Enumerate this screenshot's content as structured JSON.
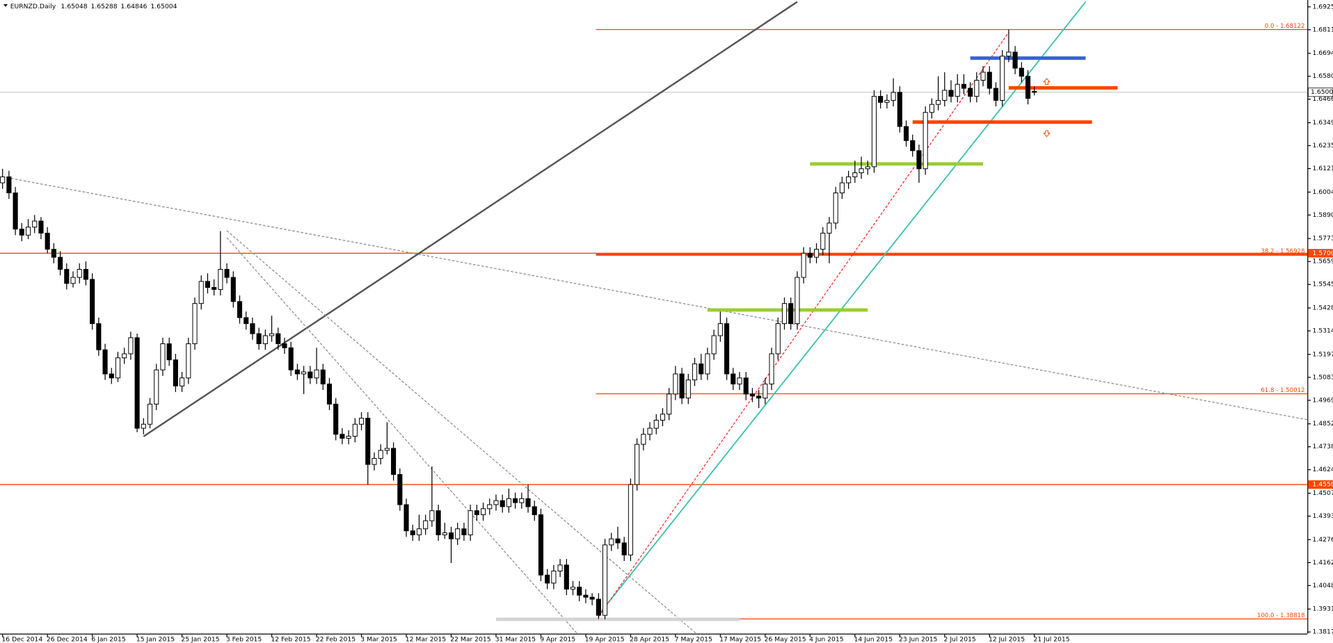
{
  "chart_data": {
    "type": "candlestick",
    "title": "EURNZD.Daily",
    "ylim": [
      1.3809,
      1.6959
    ],
    "yticks": [
      {
        "value": 1.6925,
        "label": "1.69250"
      },
      {
        "value": 1.6811,
        "label": "1.68110"
      },
      {
        "value": 1.6694,
        "label": "1.66940"
      },
      {
        "value": 1.658,
        "label": "1.65800"
      },
      {
        "value": 1.6466,
        "label": "1.64660"
      },
      {
        "value": 1.6349,
        "label": "1.63490"
      },
      {
        "value": 1.6235,
        "label": "1.62350"
      },
      {
        "value": 1.6121,
        "label": "1.61210"
      },
      {
        "value": 1.6004,
        "label": "1.60040"
      },
      {
        "value": 1.589,
        "label": "1.58900"
      },
      {
        "value": 1.5773,
        "label": "1.57730"
      },
      {
        "value": 1.5659,
        "label": "1.56590"
      },
      {
        "value": 1.5545,
        "label": "1.55450"
      },
      {
        "value": 1.5428,
        "label": "1.54280"
      },
      {
        "value": 1.5314,
        "label": "1.53140"
      },
      {
        "value": 1.5197,
        "label": "1.51970"
      },
      {
        "value": 1.5083,
        "label": "1.50830"
      },
      {
        "value": 1.4969,
        "label": "1.49690"
      },
      {
        "value": 1.4852,
        "label": "1.48520"
      },
      {
        "value": 1.4738,
        "label": "1.47380"
      },
      {
        "value": 1.4624,
        "label": "1.46240"
      },
      {
        "value": 1.4507,
        "label": "1.45070"
      },
      {
        "value": 1.4393,
        "label": "1.43930"
      },
      {
        "value": 1.4276,
        "label": "1.42760"
      },
      {
        "value": 1.4162,
        "label": "1.41620"
      },
      {
        "value": 1.4048,
        "label": "1.40480"
      },
      {
        "value": 1.3931,
        "label": "1.39310"
      },
      {
        "value": 1.3817,
        "label": "1.38170"
      }
    ],
    "x_labels": [
      "16 Dec 2014",
      "26 Dec 2014",
      "6 Jan 2015",
      "15 Jan 2015",
      "25 Jan 2015",
      "3 Feb 2015",
      "12 Feb 2015",
      "22 Feb 2015",
      "3 Mar 2015",
      "12 Mar 2015",
      "22 Mar 2015",
      "31 Mar 2015",
      "9 Apr 2015",
      "19 Apr 2015",
      "28 Apr 2015",
      "7 May 2015",
      "17 May 2015",
      "26 May 2015",
      "4 Jun 2015",
      "14 Jun 2015",
      "23 Jun 2015",
      "2 Jul 2015",
      "12 Jul 2015",
      "21 Jul 2015"
    ],
    "ohlc": [
      [
        1.605,
        1.612,
        1.602,
        1.608
      ],
      [
        1.608,
        1.611,
        1.597,
        1.6
      ],
      [
        1.6,
        1.603,
        1.579,
        1.582
      ],
      [
        1.582,
        1.585,
        1.576,
        1.579
      ],
      [
        1.579,
        1.587,
        1.577,
        1.583
      ],
      [
        1.583,
        1.589,
        1.58,
        1.586
      ],
      [
        1.586,
        1.588,
        1.577,
        1.58
      ],
      [
        1.58,
        1.583,
        1.57,
        1.572
      ],
      [
        1.572,
        1.575,
        1.565,
        1.568
      ],
      [
        1.568,
        1.571,
        1.559,
        1.562
      ],
      [
        1.562,
        1.565,
        1.552,
        1.555
      ],
      [
        1.555,
        1.561,
        1.553,
        1.558
      ],
      [
        1.558,
        1.565,
        1.555,
        1.562
      ],
      [
        1.562,
        1.566,
        1.554,
        1.557
      ],
      [
        1.557,
        1.56,
        1.532,
        1.535
      ],
      [
        1.535,
        1.538,
        1.519,
        1.522
      ],
      [
        1.522,
        1.525,
        1.507,
        1.51
      ],
      [
        1.51,
        1.513,
        1.505,
        1.508
      ],
      [
        1.508,
        1.521,
        1.506,
        1.518
      ],
      [
        1.518,
        1.523,
        1.515,
        1.52
      ],
      [
        1.52,
        1.531,
        1.517,
        1.528
      ],
      [
        1.528,
        1.53,
        1.481,
        1.483
      ],
      [
        1.483,
        1.488,
        1.48,
        1.485
      ],
      [
        1.485,
        1.498,
        1.483,
        1.495
      ],
      [
        1.495,
        1.515,
        1.492,
        1.512
      ],
      [
        1.512,
        1.528,
        1.509,
        1.525
      ],
      [
        1.525,
        1.528,
        1.514,
        1.517
      ],
      [
        1.517,
        1.52,
        1.501,
        1.504
      ],
      [
        1.504,
        1.511,
        1.501,
        1.508
      ],
      [
        1.508,
        1.528,
        1.505,
        1.525
      ],
      [
        1.525,
        1.548,
        1.522,
        1.545
      ],
      [
        1.545,
        1.559,
        1.542,
        1.556
      ],
      [
        1.556,
        1.56,
        1.55,
        1.553
      ],
      [
        1.553,
        1.557,
        1.549,
        1.552
      ],
      [
        1.552,
        1.581,
        1.549,
        1.562
      ],
      [
        1.562,
        1.565,
        1.555,
        1.558
      ],
      [
        1.558,
        1.561,
        1.543,
        1.546
      ],
      [
        1.546,
        1.549,
        1.535,
        1.538
      ],
      [
        1.538,
        1.541,
        1.532,
        1.535
      ],
      [
        1.535,
        1.538,
        1.527,
        1.53
      ],
      [
        1.53,
        1.533,
        1.522,
        1.525
      ],
      [
        1.525,
        1.532,
        1.522,
        1.529
      ],
      [
        1.529,
        1.539,
        1.526,
        1.53
      ],
      [
        1.53,
        1.533,
        1.522,
        1.525
      ],
      [
        1.525,
        1.528,
        1.52,
        1.523
      ],
      [
        1.523,
        1.526,
        1.509,
        1.512
      ],
      [
        1.512,
        1.515,
        1.507,
        1.51
      ],
      [
        1.51,
        1.514,
        1.5,
        1.511
      ],
      [
        1.511,
        1.514,
        1.505,
        1.508
      ],
      [
        1.508,
        1.523,
        1.505,
        1.512
      ],
      [
        1.512,
        1.515,
        1.502,
        1.505
      ],
      [
        1.505,
        1.508,
        1.492,
        1.495
      ],
      [
        1.495,
        1.498,
        1.477,
        1.48
      ],
      [
        1.48,
        1.483,
        1.475,
        1.478
      ],
      [
        1.478,
        1.482,
        1.475,
        1.479
      ],
      [
        1.479,
        1.488,
        1.476,
        1.485
      ],
      [
        1.485,
        1.491,
        1.482,
        1.488
      ],
      [
        1.488,
        1.491,
        1.455,
        1.465
      ],
      [
        1.465,
        1.471,
        1.462,
        1.468
      ],
      [
        1.468,
        1.475,
        1.465,
        1.472
      ],
      [
        1.472,
        1.486,
        1.47,
        1.473
      ],
      [
        1.473,
        1.476,
        1.457,
        1.46
      ],
      [
        1.46,
        1.463,
        1.442,
        1.445
      ],
      [
        1.445,
        1.448,
        1.429,
        1.432
      ],
      [
        1.432,
        1.435,
        1.427,
        1.43
      ],
      [
        1.43,
        1.44,
        1.427,
        1.433
      ],
      [
        1.433,
        1.44,
        1.43,
        1.437
      ],
      [
        1.437,
        1.464,
        1.434,
        1.442
      ],
      [
        1.442,
        1.445,
        1.427,
        1.43
      ],
      [
        1.43,
        1.436,
        1.428,
        1.431
      ],
      [
        1.431,
        1.434,
        1.416,
        1.428
      ],
      [
        1.428,
        1.436,
        1.425,
        1.433
      ],
      [
        1.433,
        1.436,
        1.427,
        1.43
      ],
      [
        1.43,
        1.445,
        1.427,
        1.442
      ],
      [
        1.442,
        1.445,
        1.437,
        1.44
      ],
      [
        1.44,
        1.446,
        1.437,
        1.443
      ],
      [
        1.443,
        1.448,
        1.44,
        1.445
      ],
      [
        1.445,
        1.45,
        1.442,
        1.447
      ],
      [
        1.447,
        1.45,
        1.441,
        1.444
      ],
      [
        1.444,
        1.453,
        1.441,
        1.448
      ],
      [
        1.448,
        1.451,
        1.443,
        1.446
      ],
      [
        1.446,
        1.451,
        1.443,
        1.448
      ],
      [
        1.448,
        1.455,
        1.441,
        1.444
      ],
      [
        1.444,
        1.447,
        1.437,
        1.44
      ],
      [
        1.44,
        1.443,
        1.407,
        1.41
      ],
      [
        1.41,
        1.413,
        1.403,
        1.406
      ],
      [
        1.406,
        1.415,
        1.403,
        1.412
      ],
      [
        1.412,
        1.418,
        1.409,
        1.415
      ],
      [
        1.415,
        1.418,
        1.4,
        1.403
      ],
      [
        1.403,
        1.407,
        1.4,
        1.404
      ],
      [
        1.404,
        1.407,
        1.397,
        1.4
      ],
      [
        1.4,
        1.403,
        1.396,
        1.399
      ],
      [
        1.399,
        1.401,
        1.395,
        1.398
      ],
      [
        1.398,
        1.401,
        1.3882,
        1.39
      ],
      [
        1.39,
        1.428,
        1.388,
        1.425
      ],
      [
        1.425,
        1.431,
        1.422,
        1.428
      ],
      [
        1.428,
        1.434,
        1.423,
        1.426
      ],
      [
        1.426,
        1.429,
        1.417,
        1.42
      ],
      [
        1.42,
        1.458,
        1.417,
        1.455
      ],
      [
        1.455,
        1.478,
        1.452,
        1.475
      ],
      [
        1.475,
        1.483,
        1.472,
        1.48
      ],
      [
        1.48,
        1.486,
        1.477,
        1.483
      ],
      [
        1.483,
        1.49,
        1.48,
        1.487
      ],
      [
        1.487,
        1.493,
        1.484,
        1.49
      ],
      [
        1.49,
        1.503,
        1.487,
        1.5
      ],
      [
        1.5,
        1.514,
        1.497,
        1.51
      ],
      [
        1.51,
        1.513,
        1.495,
        1.498
      ],
      [
        1.498,
        1.51,
        1.495,
        1.507
      ],
      [
        1.507,
        1.518,
        1.504,
        1.515
      ],
      [
        1.515,
        1.52,
        1.507,
        1.51
      ],
      [
        1.51,
        1.523,
        1.507,
        1.52
      ],
      [
        1.52,
        1.532,
        1.517,
        1.529
      ],
      [
        1.529,
        1.541,
        1.526,
        1.535
      ],
      [
        1.535,
        1.538,
        1.507,
        1.51
      ],
      [
        1.51,
        1.513,
        1.502,
        1.505
      ],
      [
        1.505,
        1.511,
        1.502,
        1.508
      ],
      [
        1.508,
        1.511,
        1.497,
        1.5
      ],
      [
        1.5,
        1.503,
        1.496,
        1.499
      ],
      [
        1.499,
        1.502,
        1.493,
        1.498
      ],
      [
        1.498,
        1.508,
        1.495,
        1.505
      ],
      [
        1.505,
        1.523,
        1.502,
        1.52
      ],
      [
        1.52,
        1.538,
        1.517,
        1.535
      ],
      [
        1.535,
        1.548,
        1.532,
        1.545
      ],
      [
        1.545,
        1.548,
        1.532,
        1.535
      ],
      [
        1.535,
        1.561,
        1.532,
        1.558
      ],
      [
        1.558,
        1.573,
        1.555,
        1.57
      ],
      [
        1.57,
        1.573,
        1.565,
        1.568
      ],
      [
        1.568,
        1.575,
        1.565,
        1.572
      ],
      [
        1.572,
        1.583,
        1.569,
        1.58
      ],
      [
        1.58,
        1.588,
        1.565,
        1.585
      ],
      [
        1.585,
        1.603,
        1.582,
        1.6
      ],
      [
        1.6,
        1.608,
        1.597,
        1.605
      ],
      [
        1.605,
        1.611,
        1.602,
        1.608
      ],
      [
        1.608,
        1.616,
        1.605,
        1.61
      ],
      [
        1.61,
        1.618,
        1.607,
        1.612
      ],
      [
        1.612,
        1.616,
        1.609,
        1.613
      ],
      [
        1.613,
        1.651,
        1.61,
        1.648
      ],
      [
        1.648,
        1.651,
        1.642,
        1.645
      ],
      [
        1.645,
        1.649,
        1.642,
        1.646
      ],
      [
        1.646,
        1.657,
        1.643,
        1.65
      ],
      [
        1.65,
        1.653,
        1.63,
        1.633
      ],
      [
        1.633,
        1.636,
        1.623,
        1.626
      ],
      [
        1.626,
        1.629,
        1.618,
        1.621
      ],
      [
        1.621,
        1.624,
        1.605,
        1.612
      ],
      [
        1.612,
        1.643,
        1.609,
        1.64
      ],
      [
        1.64,
        1.647,
        1.637,
        1.644
      ],
      [
        1.644,
        1.658,
        1.641,
        1.646
      ],
      [
        1.646,
        1.66,
        1.643,
        1.651
      ],
      [
        1.651,
        1.656,
        1.645,
        1.648
      ],
      [
        1.648,
        1.659,
        1.645,
        1.654
      ],
      [
        1.654,
        1.659,
        1.649,
        1.652
      ],
      [
        1.652,
        1.655,
        1.645,
        1.648
      ],
      [
        1.648,
        1.66,
        1.645,
        1.656
      ],
      [
        1.656,
        1.663,
        1.653,
        1.66
      ],
      [
        1.66,
        1.663,
        1.649,
        1.652
      ],
      [
        1.652,
        1.655,
        1.643,
        1.646
      ],
      [
        1.646,
        1.671,
        1.643,
        1.668
      ],
      [
        1.668,
        1.6812,
        1.665,
        1.67
      ],
      [
        1.67,
        1.673,
        1.659,
        1.662
      ],
      [
        1.662,
        1.665,
        1.655,
        1.658
      ],
      [
        1.658,
        1.661,
        1.644,
        1.647
      ],
      [
        1.65048,
        1.65288,
        1.64846,
        1.65004
      ]
    ],
    "levels": [
      {
        "value": 1.57,
        "label": "1.57000",
        "color": "#ff4500"
      },
      {
        "value": 1.455,
        "label": "1.45500",
        "color": "#ff4500"
      }
    ],
    "fibonacci": {
      "from_bar": 93,
      "color": "#ff4500",
      "levels": [
        {
          "value": 1.68122,
          "label": "0.0 - 1.68122"
        },
        {
          "value": 1.56928,
          "label": "38.2 - 1.56928"
        },
        {
          "value": 1.50012,
          "label": "61.8 - 1.50012"
        },
        {
          "value": 1.38818,
          "label": "100.0 - 1.38818"
        }
      ]
    },
    "zones": [
      {
        "value": 1.667,
        "from": 151,
        "to": 169,
        "color": "#3a62d6"
      },
      {
        "value": 1.6522,
        "from": 157,
        "to": 174,
        "color": "#ff4500"
      },
      {
        "value": 1.6352,
        "from": 142,
        "to": 170,
        "color": "#ff4500"
      },
      {
        "value": 1.6144,
        "from": 126,
        "to": 153,
        "color": "#9acd32"
      },
      {
        "value": 1.5418,
        "from": 110,
        "to": 135,
        "color": "#9acd32"
      },
      {
        "value": 1.388,
        "from": 77,
        "to": 115,
        "color": "#d3d3d3"
      }
    ],
    "trendlines": [
      {
        "from": [
          22,
          1.4789
        ],
        "to": [
          124,
          1.695
        ],
        "color": "#555555",
        "width": 2,
        "dashed": false
      },
      {
        "from": [
          93,
          1.3902
        ],
        "to": [
          169,
          1.695
        ],
        "color": "#40c0b0",
        "width": 1.5,
        "dashed": false
      },
      {
        "from": [
          93,
          1.3893
        ],
        "to": [
          157,
          1.6798
        ],
        "color": "#ff2020",
        "width": 1,
        "dashed": true
      },
      {
        "from": [
          0,
          1.608
        ],
        "to": [
          204,
          1.487
        ],
        "color": "#888888",
        "width": 1,
        "dashed": true
      },
      {
        "from": [
          35,
          1.5812
        ],
        "to": [
          110,
          1.3761
        ],
        "color": "#888888",
        "width": 1,
        "dashed": true
      },
      {
        "from": [
          35,
          1.5778
        ],
        "to": [
          91,
          1.3761
        ],
        "color": "#888888",
        "width": 1,
        "dashed": true
      }
    ]
  }
}
